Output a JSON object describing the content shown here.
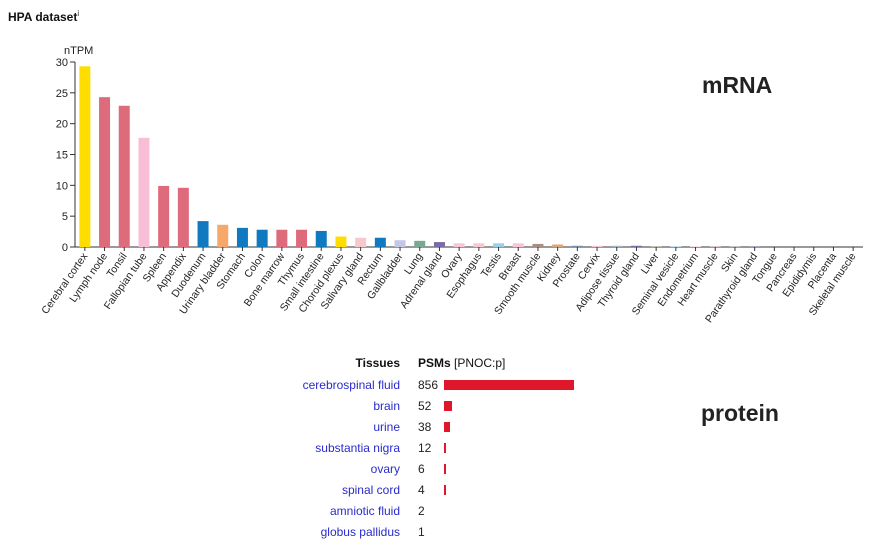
{
  "header": {
    "dataset_title": "HPA dataset",
    "info_mark": "i"
  },
  "labels": {
    "mrna": "mRNA",
    "protein": "protein"
  },
  "chart_data": [
    {
      "type": "bar",
      "title": "",
      "ylabel": "nTPM",
      "xlabel": "",
      "ylim": [
        0,
        30
      ],
      "yticks": [
        0,
        5,
        10,
        15,
        20,
        25,
        30
      ],
      "grid": false,
      "categories": [
        "Cerebral cortex",
        "Lymph node",
        "Tonsil",
        "Fallopian tube",
        "Spleen",
        "Appendix",
        "Duodenum",
        "Urinary bladder",
        "Stomach",
        "Colon",
        "Bone marrow",
        "Thymus",
        "Small intestine",
        "Choroid plexus",
        "Salivary gland",
        "Rectum",
        "Gallbladder",
        "Lung",
        "Adrenal gland",
        "Ovary",
        "Esophagus",
        "Testis",
        "Breast",
        "Smooth muscle",
        "Kidney",
        "Prostate",
        "Cervix",
        "Adipose tissue",
        "Thyroid gland",
        "Liver",
        "Seminal vesicle",
        "Endometrium",
        "Heart muscle",
        "Skin",
        "Parathyroid gland",
        "Tongue",
        "Pancreas",
        "Epididymis",
        "Placenta",
        "Skeletal muscle"
      ],
      "values": [
        29.3,
        24.3,
        22.9,
        17.7,
        9.9,
        9.6,
        4.2,
        3.6,
        3.1,
        2.8,
        2.8,
        2.8,
        2.6,
        1.7,
        1.5,
        1.5,
        1.1,
        1.0,
        0.8,
        0.6,
        0.6,
        0.6,
        0.6,
        0.5,
        0.4,
        0.2,
        0.2,
        0.2,
        0.2,
        0.1,
        0.1,
        0.1,
        0.1,
        0.1,
        0.1,
        0.0,
        0.0,
        0.0,
        0.0,
        0.0
      ],
      "colors": [
        "#ffdd00",
        "#de6b7c",
        "#de6b7c",
        "#f7bed6",
        "#de6b7c",
        "#de6b7c",
        "#1179c0",
        "#f5a86a",
        "#1179c0",
        "#1179c0",
        "#de6b7c",
        "#de6b7c",
        "#1179c0",
        "#ffdd00",
        "#f7c9cf",
        "#1179c0",
        "#c6c6e6",
        "#7aa893",
        "#7b6aa6",
        "#f7c4d8",
        "#f5c9cf",
        "#9bcfe6",
        "#f7c4d8",
        "#a68f82",
        "#e0a574",
        "#7a8fa8",
        "#f7c4d8",
        "#9db8c9",
        "#7b6aa6",
        "#a09a83",
        "#9bcfe6",
        "#f7c4d8",
        "#c0a0b0",
        "#a0a0a0",
        "#7b6aa6",
        "#b0b0b0",
        "#a0a0a0",
        "#9bcfe6",
        "#f7c4d8",
        "#c09090"
      ]
    },
    {
      "type": "bar",
      "title": "",
      "xlabel": "",
      "ylabel": "",
      "header_tissues": "Tissues",
      "header_psms": "PSMs",
      "header_gene": "[PNOC:p]",
      "bar_color": "#e0162b",
      "max_value": 856,
      "categories": [
        "cerebrospinal fluid",
        "brain",
        "urine",
        "substantia nigra",
        "ovary",
        "spinal cord",
        "amniotic fluid",
        "globus pallidus"
      ],
      "values": [
        856,
        52,
        38,
        12,
        6,
        4,
        2,
        1
      ],
      "value_labels": [
        "856",
        "52",
        "38",
        "12",
        "6",
        "4",
        "2",
        "1"
      ],
      "show_bar": [
        true,
        true,
        true,
        true,
        true,
        true,
        false,
        false
      ]
    }
  ]
}
